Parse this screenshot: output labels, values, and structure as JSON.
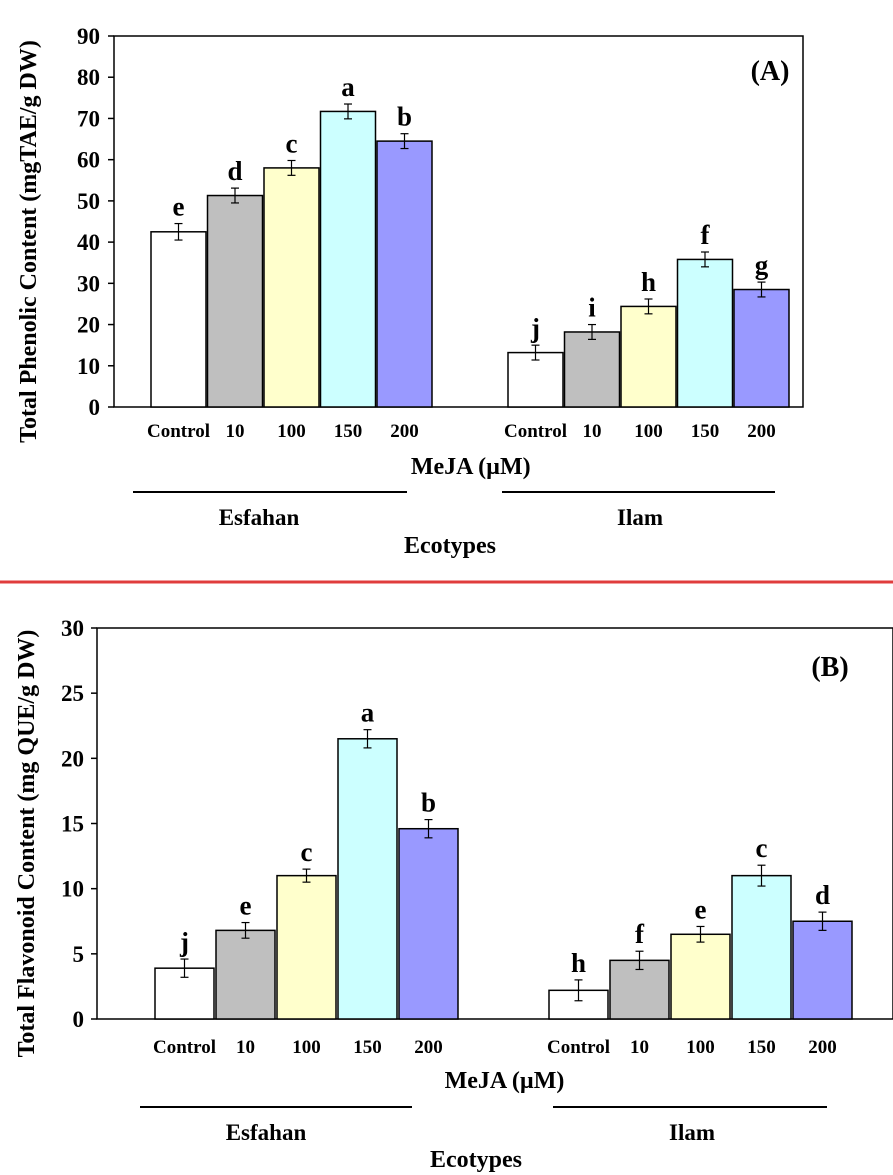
{
  "colors": {
    "control": "#ffffff",
    "c10": "#bfbfbf",
    "c100": "#ffffcc",
    "c150": "#ccffff",
    "c200": "#9999ff",
    "separator": "#e03c3c",
    "outline": "#000000"
  },
  "chart_data": [
    {
      "type": "bar",
      "panel_label": "(A)",
      "ylabel": "Total Phenolic Content (mgTAE/g DW)",
      "xlabel": "MeJA (µM)",
      "group_axis_label": "Ecotypes",
      "ylim": [
        0,
        90
      ],
      "yticks": [
        "0",
        "10",
        "20",
        "30",
        "40",
        "50",
        "60",
        "70",
        "80",
        "90"
      ],
      "groups": [
        "Esfahan",
        "Ilam"
      ],
      "categories": [
        "Control",
        "10",
        "100",
        "150",
        "200"
      ],
      "series": [
        {
          "group": "Esfahan",
          "values": [
            42.5,
            51.3,
            58.0,
            71.7,
            64.5
          ],
          "errors": [
            2.0,
            1.8,
            1.8,
            1.8,
            1.8
          ],
          "letters": [
            "e",
            "d",
            "c",
            "a",
            "b"
          ]
        },
        {
          "group": "Ilam",
          "values": [
            13.2,
            18.2,
            24.4,
            35.8,
            28.5
          ],
          "errors": [
            1.8,
            1.8,
            1.8,
            1.8,
            1.8
          ],
          "letters": [
            "j",
            "i",
            "h",
            "f",
            "g"
          ]
        }
      ],
      "grid": false
    },
    {
      "type": "bar",
      "panel_label": "(B)",
      "ylabel": "Total Flavonoid Content (mg QUE/g DW)",
      "xlabel": "MeJA (µM)",
      "group_axis_label": "Ecotypes",
      "ylim": [
        0,
        30
      ],
      "yticks": [
        "0",
        "5",
        "10",
        "15",
        "20",
        "25",
        "30"
      ],
      "groups": [
        "Esfahan",
        "Ilam"
      ],
      "categories": [
        "Control",
        "10",
        "100",
        "150",
        "200"
      ],
      "series": [
        {
          "group": "Esfahan",
          "values": [
            3.9,
            6.8,
            11.0,
            21.5,
            14.6
          ],
          "errors": [
            0.7,
            0.6,
            0.5,
            0.7,
            0.7
          ],
          "letters": [
            "j",
            "e",
            "c",
            "a",
            "b"
          ]
        },
        {
          "group": "Ilam",
          "values": [
            2.2,
            4.5,
            6.5,
            11.0,
            7.5
          ],
          "errors": [
            0.8,
            0.7,
            0.6,
            0.8,
            0.7
          ],
          "letters": [
            "h",
            "f",
            "e",
            "c",
            "d"
          ]
        }
      ],
      "grid": false
    }
  ]
}
